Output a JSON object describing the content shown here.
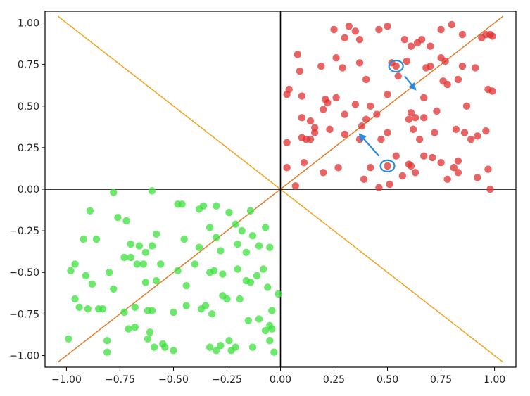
{
  "chart_data": {
    "type": "scatter",
    "title": "",
    "xlabel": "",
    "ylabel": "",
    "xlim": [
      -1.1,
      1.1
    ],
    "ylim": [
      -1.07,
      1.07
    ],
    "x_ticks": [
      -1.0,
      -0.75,
      -0.5,
      -0.25,
      0.0,
      0.25,
      0.5,
      0.75,
      1.0
    ],
    "y_ticks": [
      -1.0,
      -0.75,
      -0.5,
      -0.25,
      0.0,
      0.25,
      0.5,
      0.75,
      1.0
    ],
    "x_tick_labels": [
      "−1.00",
      "−0.75",
      "−0.50",
      "−0.25",
      "0.00",
      "0.25",
      "0.50",
      "0.75",
      "1.00"
    ],
    "y_tick_labels": [
      "−1.00",
      "−0.75",
      "−0.50",
      "−0.25",
      "0.00",
      "0.25",
      "0.50",
      "0.75",
      "1.00"
    ],
    "grid": false,
    "axis_lines": {
      "x": 0,
      "y": 0,
      "color": "#000000"
    },
    "reference_lines": [
      {
        "slope": 1,
        "color": "#e07b29"
      },
      {
        "slope": -1,
        "color": "#f2a21d"
      }
    ],
    "series": [
      {
        "color": "#e03030",
        "points": [
          [
            0.25,
            0.96
          ],
          [
            0.3,
            0.91
          ],
          [
            0.32,
            0.98
          ],
          [
            0.35,
            0.95
          ],
          [
            0.37,
            0.9
          ],
          [
            0.46,
            0.96
          ],
          [
            0.5,
            0.98
          ],
          [
            0.58,
            0.9
          ],
          [
            0.61,
            0.86
          ],
          [
            0.64,
            0.88
          ],
          [
            0.66,
            0.9
          ],
          [
            0.7,
            0.86
          ],
          [
            0.75,
            0.96
          ],
          [
            0.8,
            0.99
          ],
          [
            0.85,
            0.93
          ],
          [
            0.94,
            0.91
          ],
          [
            0.96,
            0.93
          ],
          [
            0.98,
            0.93
          ],
          [
            0.99,
            0.92
          ],
          [
            0.08,
            0.81
          ],
          [
            0.09,
            0.71
          ],
          [
            0.19,
            0.74
          ],
          [
            0.26,
            0.79
          ],
          [
            0.29,
            0.73
          ],
          [
            0.37,
            0.76
          ],
          [
            0.52,
            0.76
          ],
          [
            0.59,
            0.77
          ],
          [
            0.68,
            0.73
          ],
          [
            0.7,
            0.74
          ],
          [
            0.75,
            0.79
          ],
          [
            0.77,
            0.77
          ],
          [
            0.85,
            0.74
          ],
          [
            0.91,
            0.73
          ],
          [
            0.03,
            0.57
          ],
          [
            0.04,
            0.6
          ],
          [
            0.1,
            0.56
          ],
          [
            0.21,
            0.54
          ],
          [
            0.26,
            0.55
          ],
          [
            0.35,
            0.51
          ],
          [
            0.4,
            0.66
          ],
          [
            0.5,
            0.57
          ],
          [
            0.55,
            0.68
          ],
          [
            0.67,
            0.55
          ],
          [
            0.76,
            0.65
          ],
          [
            0.78,
            0.63
          ],
          [
            0.83,
            0.66
          ],
          [
            0.97,
            0.6
          ],
          [
            0.99,
            0.59
          ],
          [
            0.2,
            0.48
          ],
          [
            0.22,
            0.52
          ],
          [
            0.42,
            0.5
          ],
          [
            0.61,
            0.46
          ],
          [
            0.67,
            0.43
          ],
          [
            0.73,
            0.47
          ],
          [
            0.87,
            0.5
          ],
          [
            0.1,
            0.43
          ],
          [
            0.14,
            0.41
          ],
          [
            0.3,
            0.45
          ],
          [
            0.4,
            0.42
          ],
          [
            0.45,
            0.45
          ],
          [
            0.6,
            0.42
          ],
          [
            0.63,
            0.43
          ],
          [
            0.1,
            0.31
          ],
          [
            0.14,
            0.3
          ],
          [
            0.16,
            0.37
          ],
          [
            0.23,
            0.36
          ],
          [
            0.3,
            0.33
          ],
          [
            0.38,
            0.38
          ],
          [
            0.5,
            0.34
          ],
          [
            0.62,
            0.36
          ],
          [
            0.65,
            0.3
          ],
          [
            0.72,
            0.34
          ],
          [
            0.82,
            0.36
          ],
          [
            0.86,
            0.34
          ],
          [
            0.89,
            0.3
          ],
          [
            0.92,
            0.32
          ],
          [
            0.96,
            0.35
          ],
          [
            0.03,
            0.28
          ],
          [
            0.12,
            0.3
          ],
          [
            0.16,
            0.34
          ],
          [
            0.37,
            0.3
          ],
          [
            0.47,
            0.3
          ],
          [
            0.03,
            0.13
          ],
          [
            0.11,
            0.16
          ],
          [
            0.2,
            0.1
          ],
          [
            0.27,
            0.13
          ],
          [
            0.39,
            0.06
          ],
          [
            0.42,
            0.13
          ],
          [
            0.54,
            0.2
          ],
          [
            0.6,
            0.15
          ],
          [
            0.63,
            0.1
          ],
          [
            0.67,
            0.2
          ],
          [
            0.71,
            0.19
          ],
          [
            0.78,
            0.06
          ],
          [
            0.81,
            0.13
          ],
          [
            0.83,
            0.17
          ],
          [
            0.92,
            0.07
          ],
          [
            0.97,
            0.12
          ],
          [
            0.98,
            0.0
          ],
          [
            0.07,
            0.02
          ],
          [
            0.46,
            0.01
          ],
          [
            0.51,
            0.03
          ],
          [
            0.57,
            0.08
          ],
          [
            0.61,
            0.14
          ],
          [
            0.75,
            0.16
          ],
          [
            0.83,
            0.1
          ],
          [
            0.5,
            0.14
          ],
          [
            0.54,
            0.74
          ]
        ]
      },
      {
        "color": "#3be03b",
        "points": [
          [
            -0.78,
            -0.02
          ],
          [
            -0.6,
            -0.01
          ],
          [
            -0.89,
            -0.13
          ],
          [
            -0.48,
            -0.09
          ],
          [
            -0.46,
            -0.09
          ],
          [
            -0.38,
            -0.12
          ],
          [
            -0.36,
            -0.1
          ],
          [
            -0.3,
            -0.1
          ],
          [
            -0.24,
            -0.14
          ],
          [
            -0.14,
            -0.13
          ],
          [
            -0.76,
            -0.17
          ],
          [
            -0.72,
            -0.19
          ],
          [
            -0.58,
            -0.27
          ],
          [
            -0.33,
            -0.23
          ],
          [
            -0.21,
            -0.21
          ],
          [
            -0.18,
            -0.25
          ],
          [
            -0.13,
            -0.28
          ],
          [
            -0.07,
            -0.23
          ],
          [
            -0.92,
            -0.3
          ],
          [
            -0.86,
            -0.3
          ],
          [
            -0.7,
            -0.33
          ],
          [
            -0.66,
            -0.34
          ],
          [
            -0.63,
            -0.38
          ],
          [
            -0.6,
            -0.34
          ],
          [
            -0.45,
            -0.3
          ],
          [
            -0.38,
            -0.35
          ],
          [
            -0.3,
            -0.29
          ],
          [
            -0.28,
            -0.37
          ],
          [
            -0.2,
            -0.33
          ],
          [
            -0.16,
            -0.38
          ],
          [
            -0.1,
            -0.34
          ],
          [
            -0.05,
            -0.35
          ],
          [
            -0.96,
            -0.45
          ],
          [
            -0.98,
            -0.49
          ],
          [
            -0.91,
            -0.52
          ],
          [
            -0.88,
            -0.57
          ],
          [
            -0.8,
            -0.5
          ],
          [
            -0.73,
            -0.41
          ],
          [
            -0.7,
            -0.41
          ],
          [
            -0.67,
            -0.45
          ],
          [
            -0.64,
            -0.45
          ],
          [
            -0.63,
            -0.56
          ],
          [
            -0.58,
            -0.55
          ],
          [
            -0.56,
            -0.45
          ],
          [
            -0.48,
            -0.49
          ],
          [
            -0.44,
            -0.58
          ],
          [
            -0.4,
            -0.45
          ],
          [
            -0.33,
            -0.5
          ],
          [
            -0.31,
            -0.49
          ],
          [
            -0.27,
            -0.51
          ],
          [
            -0.2,
            -0.48
          ],
          [
            -0.16,
            -0.55
          ],
          [
            -0.14,
            -0.56
          ],
          [
            -0.11,
            -0.52
          ],
          [
            -0.08,
            -0.48
          ],
          [
            -0.06,
            -0.59
          ],
          [
            -0.96,
            -0.66
          ],
          [
            -0.94,
            -0.71
          ],
          [
            -0.9,
            -0.72
          ],
          [
            -0.85,
            -0.72
          ],
          [
            -0.83,
            -0.72
          ],
          [
            -0.78,
            -0.6
          ],
          [
            -0.73,
            -0.74
          ],
          [
            -0.68,
            -0.71
          ],
          [
            -0.62,
            -0.73
          ],
          [
            -0.6,
            -0.73
          ],
          [
            -0.5,
            -0.74
          ],
          [
            -0.44,
            -0.7
          ],
          [
            -0.37,
            -0.72
          ],
          [
            -0.35,
            -0.7
          ],
          [
            -0.32,
            -0.75
          ],
          [
            -0.27,
            -0.64
          ],
          [
            -0.25,
            -0.66
          ],
          [
            -0.19,
            -0.66
          ],
          [
            -0.15,
            -0.79
          ],
          [
            -0.1,
            -0.78
          ],
          [
            -0.07,
            -0.85
          ],
          [
            -0.05,
            -0.82
          ],
          [
            -0.04,
            -0.73
          ],
          [
            -0.01,
            -0.63
          ],
          [
            -0.99,
            -0.9
          ],
          [
            -0.81,
            -0.91
          ],
          [
            -0.81,
            -0.98
          ],
          [
            -0.71,
            -0.84
          ],
          [
            -0.68,
            -0.83
          ],
          [
            -0.62,
            -0.9
          ],
          [
            -0.61,
            -0.86
          ],
          [
            -0.59,
            -0.95
          ],
          [
            -0.55,
            -0.93
          ],
          [
            -0.54,
            -0.95
          ],
          [
            -0.5,
            -0.97
          ],
          [
            -0.33,
            -0.95
          ],
          [
            -0.3,
            -0.97
          ],
          [
            -0.28,
            -0.94
          ],
          [
            -0.24,
            -0.91
          ],
          [
            -0.23,
            -0.97
          ],
          [
            -0.21,
            -0.95
          ],
          [
            -0.13,
            -0.95
          ],
          [
            -0.05,
            -0.91
          ],
          [
            -0.03,
            -0.98
          ],
          [
            -0.04,
            -0.84
          ]
        ]
      }
    ],
    "annotations": [
      {
        "type": "circle",
        "x": 0.54,
        "y": 0.74,
        "color": "#2a8be0"
      },
      {
        "type": "circle",
        "x": 0.5,
        "y": 0.14,
        "color": "#2a8be0"
      },
      {
        "type": "arrow",
        "from": [
          0.58,
          0.68
        ],
        "to": [
          0.63,
          0.6
        ],
        "color": "#2a8be0"
      },
      {
        "type": "arrow",
        "from": [
          0.46,
          0.2
        ],
        "to": [
          0.37,
          0.33
        ],
        "color": "#2a8be0"
      }
    ]
  }
}
